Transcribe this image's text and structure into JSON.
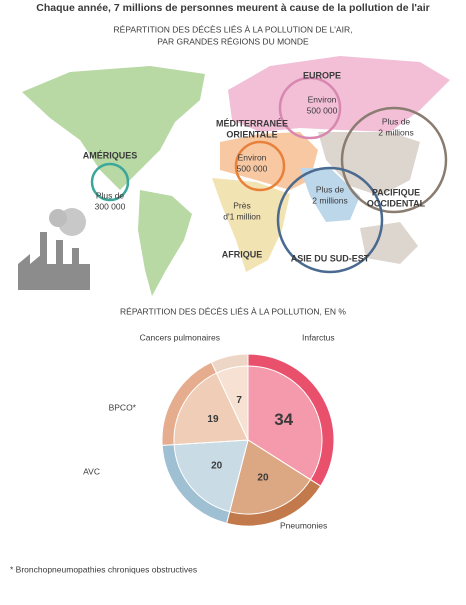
{
  "header": {
    "title": "Chaque année, 7 millions de personnes meurent à cause de la pollution de l'air"
  },
  "map": {
    "title_lines": [
      "RÉPARTITION DES DÉCÈS LIÉS À LA POLLUTION DE L'AIR,",
      "PAR GRANDES RÉGIONS DU MONDE"
    ],
    "regions": [
      {
        "name_lines": [
          "EUROPE"
        ],
        "amount_lines": [
          "Environ",
          "500 000"
        ]
      },
      {
        "name_lines": [
          "MÉDITERRANÉE",
          "ORIENTALE"
        ],
        "amount_lines": [
          "Environ",
          "500 000"
        ]
      },
      {
        "name_lines": [
          "AMÉRIQUES"
        ],
        "amount_lines": [
          "Plus de",
          "300 000"
        ]
      },
      {
        "name_lines": [
          "AFRIQUE"
        ],
        "amount_lines": [
          "Près",
          "d'1 million"
        ]
      },
      {
        "name_lines": [
          "PACIFIQUE",
          "OCCIDENTAL"
        ],
        "amount_lines": [
          "Plus de",
          "2 millions"
        ]
      },
      {
        "name_lines": [
          "ASIE DU SUD-EST"
        ],
        "amount_lines": [
          "Plus de",
          "2 millions"
        ]
      }
    ]
  },
  "chart_data": {
    "type": "pie",
    "title": "RÉPARTITION DES DÉCÈS LIÉS À LA POLLUTION, EN %",
    "categories": [
      "Infarctus",
      "Pneumonies",
      "AVC",
      "BPCO*",
      "Cancers pulmonaires"
    ],
    "values": [
      34,
      20,
      20,
      19,
      7
    ],
    "colors": [
      "#f59aac",
      "#dca783",
      "#c9dce6",
      "#efcdb6",
      "#f6e1d2"
    ],
    "edge_colors": [
      "#e8506c",
      "#c27a4c",
      "#9fbfd2",
      "#e5ad8e",
      "#eed6c6"
    ]
  },
  "footnote": "* Bronchopneumopathies chroniques obstructives"
}
